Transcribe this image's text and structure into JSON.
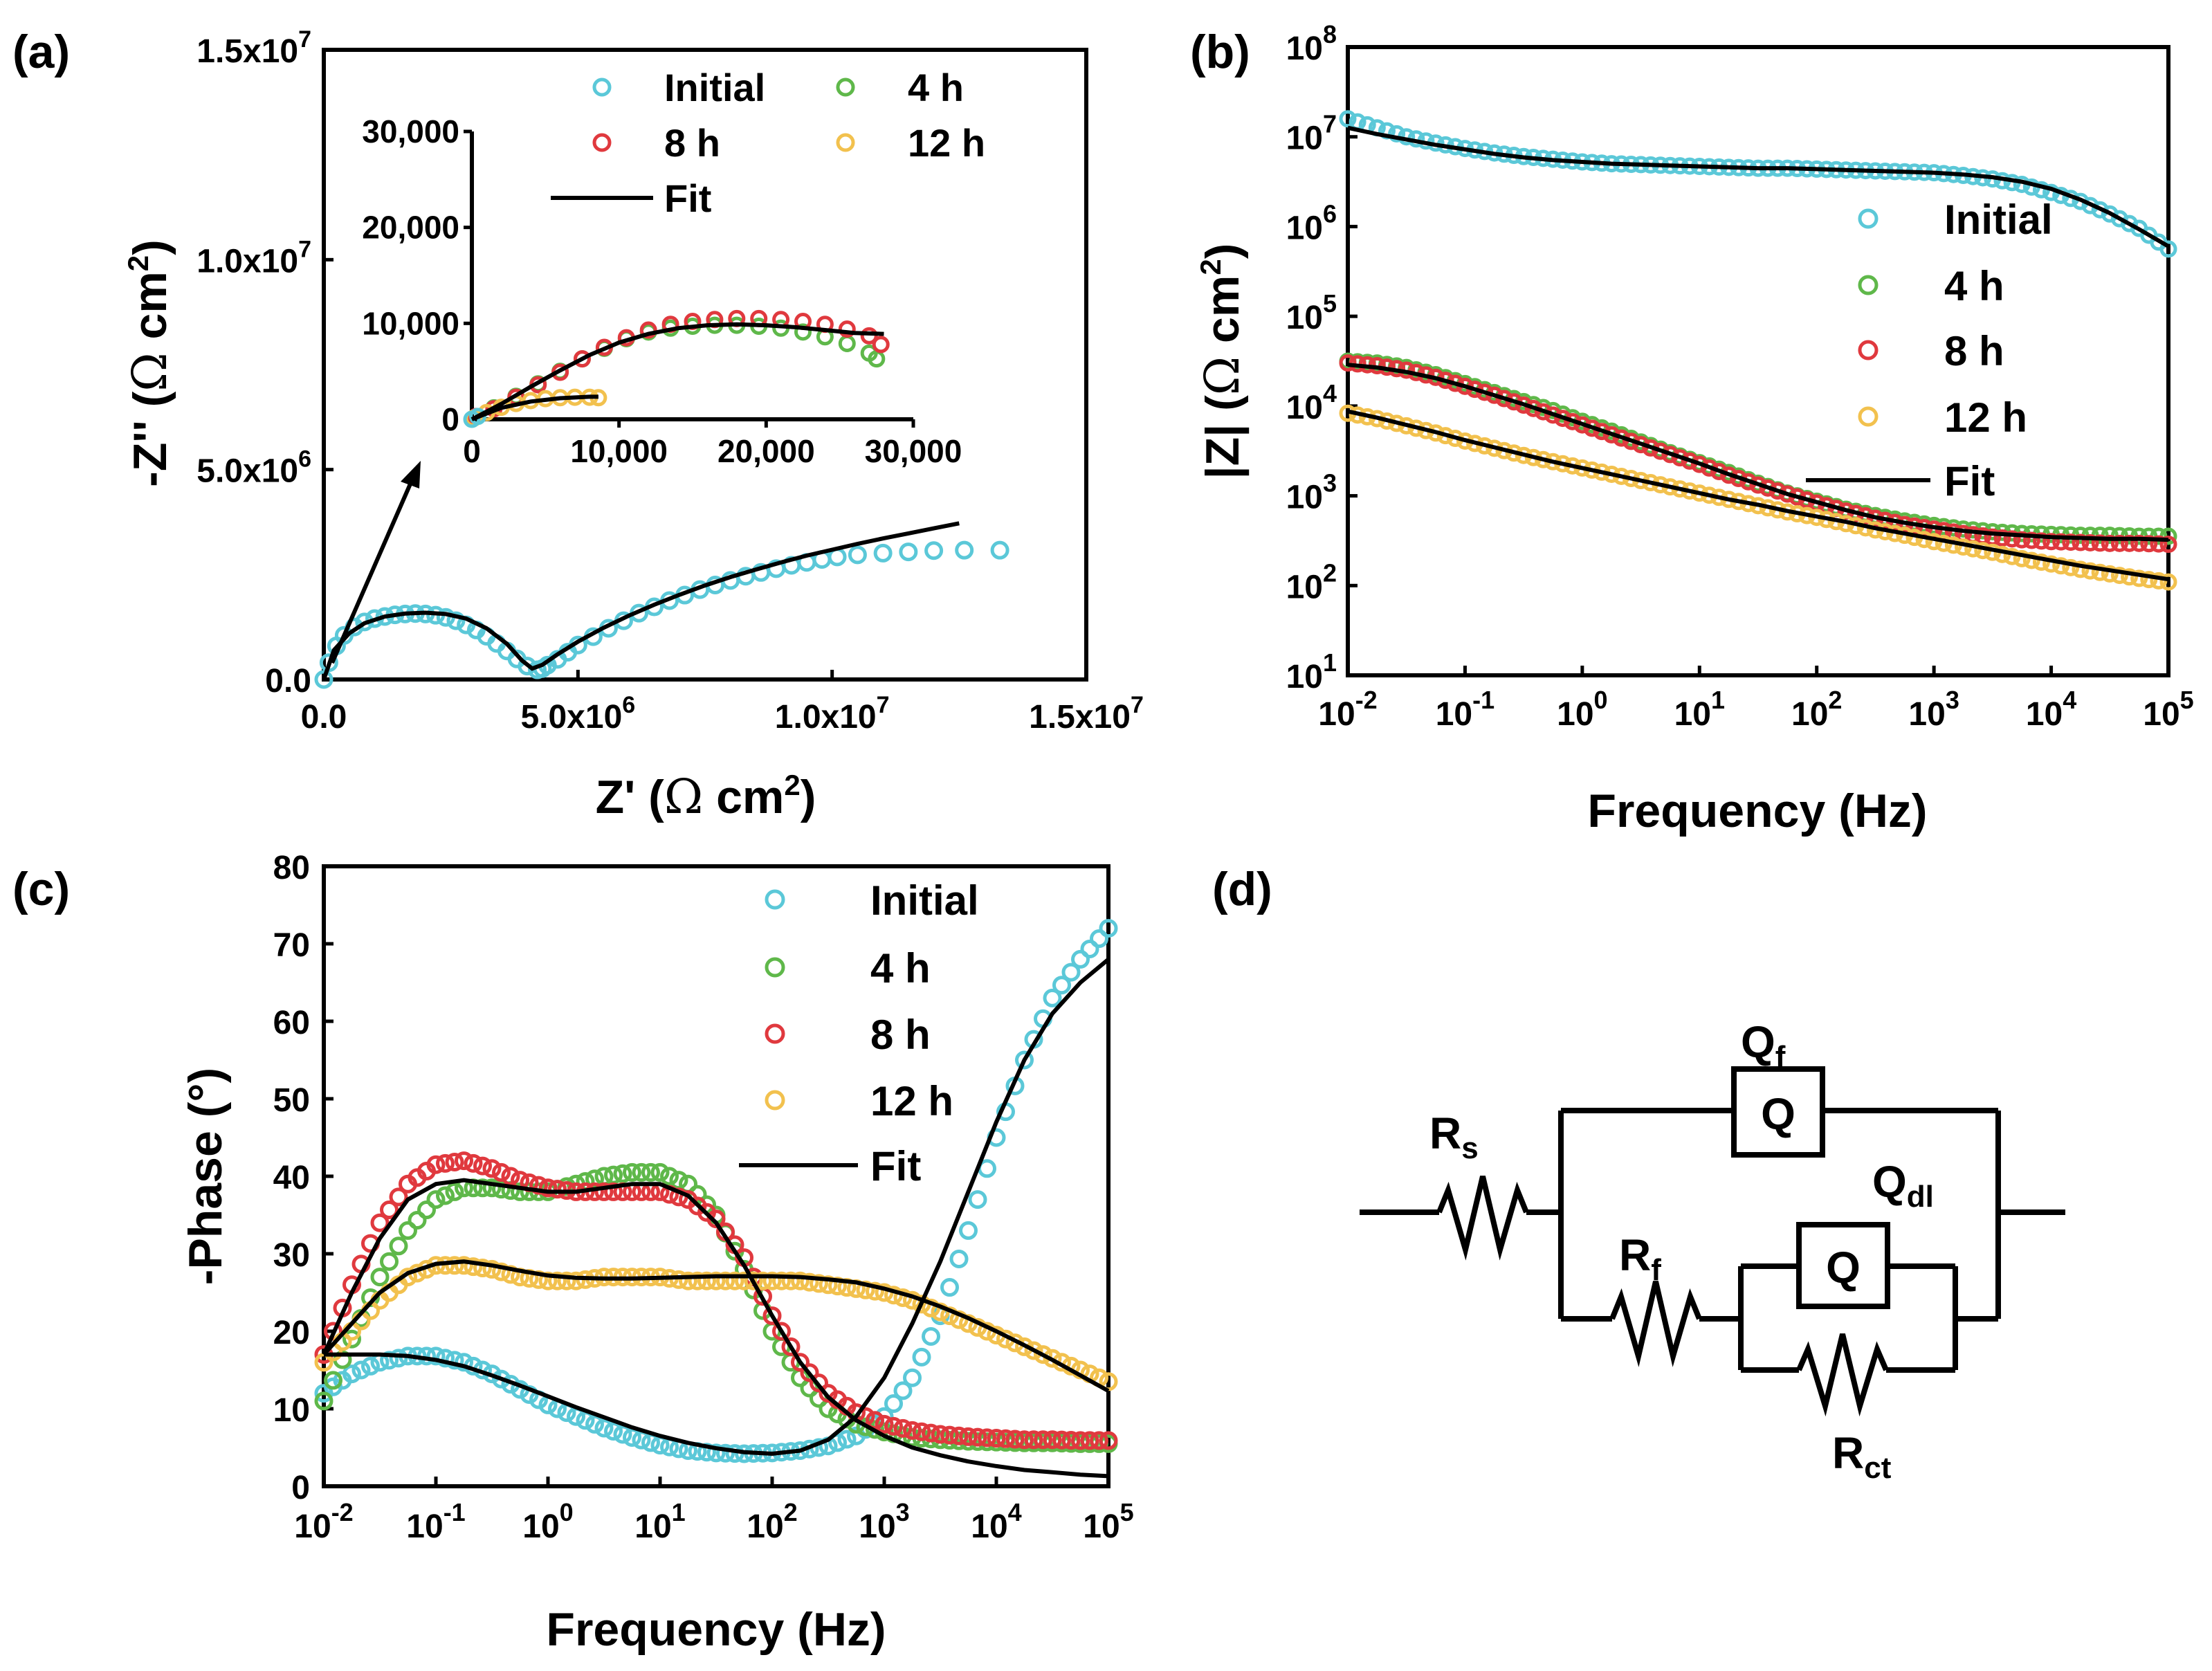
{
  "colors": {
    "initial": "#5bc8d8",
    "h4": "#5fb84a",
    "h8": "#e0393e",
    "h12": "#f2c14e",
    "fit": "#000000"
  },
  "panels": {
    "a": {
      "label": "(a)",
      "xlabel": "Z' (Ω cm²)",
      "ylabel": "-Z'' (Ω cm²)"
    },
    "b": {
      "label": "(b)",
      "xlabel": "Frequency (Hz)",
      "ylabel": "|Z| (Ω cm²)"
    },
    "c": {
      "label": "(c)",
      "xlabel": "Frequency (Hz)",
      "ylabel": "-Phase (°)"
    },
    "d": {
      "label": "(d)"
    }
  },
  "legend": {
    "initial": "Initial",
    "h4": "4 h",
    "h8": "8 h",
    "h12": "12 h",
    "fit": "Fit"
  },
  "circuit": {
    "labels": {
      "rs": "Rs",
      "rf": "Rf",
      "rct": "Rct",
      "qf": "Qf",
      "qdl": "Qdl",
      "q_symbol": "Q"
    },
    "elements": [
      {
        "name": "Rs",
        "type": "resistor",
        "connection": "series"
      },
      {
        "name": "Qf",
        "type": "CPE",
        "connection": "parallel with (Rf + (Qdl || Rct))"
      },
      {
        "name": "Rf",
        "type": "resistor",
        "connection": "series with (Qdl || Rct)"
      },
      {
        "name": "Qdl",
        "type": "CPE",
        "connection": "parallel with Rct"
      },
      {
        "name": "Rct",
        "type": "resistor",
        "connection": "parallel with Qdl"
      }
    ]
  },
  "chart_data": [
    {
      "id": "a",
      "type": "scatter",
      "title": "",
      "xlabel": "Z' (Ω cm²)",
      "ylabel": "-Z'' (Ω cm²)",
      "xlim": [
        0,
        15000000
      ],
      "ylim": [
        0,
        15000000
      ],
      "xticks": [
        0,
        5000000,
        10000000,
        15000000
      ],
      "xtick_labels": [
        "0.0",
        "5.0x10^6",
        "1.0x10^7",
        "1.5x10^7"
      ],
      "yticks": [
        0,
        5000000,
        10000000,
        15000000
      ],
      "ytick_labels": [
        "0.0",
        "5.0x10^6",
        "1.0x10^7",
        "1.5x10^7"
      ],
      "series": [
        {
          "name": "Initial",
          "marker": "open-circle",
          "x": [
            0,
            100000,
            250000,
            400000,
            600000,
            800000,
            1000000,
            1200000,
            1400000,
            1600000,
            1800000,
            2000000,
            2200000,
            2400000,
            2600000,
            2800000,
            3000000,
            3200000,
            3400000,
            3600000,
            3800000,
            4000000,
            4200000,
            4300000,
            4400000,
            4600000,
            4800000,
            5000000,
            5300000,
            5600000,
            5900000,
            6200000,
            6500000,
            6800000,
            7100000,
            7400000,
            7700000,
            8000000,
            8300000,
            8600000,
            8900000,
            9200000,
            9500000,
            9800000,
            10100000,
            10500000,
            11000000,
            11500000,
            12000000,
            12600000,
            13300000
          ],
          "y": [
            0,
            400000,
            800000,
            1050000,
            1250000,
            1370000,
            1450000,
            1500000,
            1540000,
            1560000,
            1570000,
            1560000,
            1530000,
            1480000,
            1400000,
            1300000,
            1180000,
            1030000,
            860000,
            680000,
            490000,
            320000,
            230000,
            260000,
            340000,
            480000,
            650000,
            820000,
            1020000,
            1220000,
            1400000,
            1580000,
            1730000,
            1880000,
            2010000,
            2140000,
            2250000,
            2360000,
            2460000,
            2550000,
            2640000,
            2720000,
            2790000,
            2860000,
            2920000,
            2970000,
            3010000,
            3040000,
            3070000,
            3080000,
            3080000
          ]
        }
      ],
      "fit": {
        "x": [
          0,
          200000,
          500000,
          800000,
          1200000,
          1600000,
          2000000,
          2400000,
          2800000,
          3200000,
          3600000,
          3900000,
          4100000,
          4300000,
          4600000,
          5000000,
          5500000,
          6000000,
          6500000,
          7000000,
          7500000,
          8000000,
          8500000,
          9000000,
          9500000,
          10000000,
          10500000,
          11000000,
          11500000,
          12000000,
          12500000
        ],
        "y": [
          0,
          700000,
          1100000,
          1340000,
          1500000,
          1570000,
          1590000,
          1560000,
          1450000,
          1220000,
          850000,
          450000,
          260000,
          350000,
          600000,
          900000,
          1230000,
          1520000,
          1780000,
          2020000,
          2240000,
          2440000,
          2620000,
          2790000,
          2950000,
          3090000,
          3230000,
          3360000,
          3480000,
          3600000,
          3720000
        ]
      },
      "annotation": {
        "type": "arrow",
        "from": [
          200000,
          500000
        ],
        "to": [
          1900000,
          4000000
        ]
      },
      "inset": {
        "xlim": [
          0,
          30000
        ],
        "ylim": [
          0,
          30000
        ],
        "xticks": [
          0,
          10000,
          20000,
          30000
        ],
        "xtick_labels": [
          "0",
          "10,000",
          "20,000",
          "30,000"
        ],
        "yticks": [
          0,
          10000,
          20000,
          30000
        ],
        "ytick_labels": [
          "0",
          "10,000",
          "20,000",
          "30,000"
        ],
        "series": [
          {
            "name": "4 h",
            "x": [
              200,
              1500,
              3000,
              4500,
              6000,
              7500,
              9000,
              10500,
              12000,
              13500,
              15000,
              16500,
              18000,
              19500,
              21000,
              22500,
              24000,
              25500,
              27000,
              27500
            ],
            "y": [
              200,
              1200,
              2400,
              3700,
              5000,
              6300,
              7400,
              8400,
              9100,
              9500,
              9700,
              9800,
              9800,
              9700,
              9500,
              9100,
              8600,
              7900,
              6900,
              6300
            ]
          },
          {
            "name": "8 h",
            "x": [
              300,
              1500,
              3000,
              4500,
              6000,
              7500,
              9000,
              10500,
              12000,
              13500,
              15000,
              16500,
              18000,
              19500,
              21000,
              22500,
              24000,
              25500,
              27000,
              27800
            ],
            "y": [
              300,
              1100,
              2300,
              3600,
              4900,
              6300,
              7500,
              8500,
              9300,
              9900,
              10200,
              10400,
              10500,
              10500,
              10400,
              10200,
              9900,
              9400,
              8700,
              7800
            ]
          },
          {
            "name": "12 h",
            "x": [
              100,
              1000,
              2000,
              3000,
              4000,
              5000,
              6000,
              7000,
              8000,
              8600
            ],
            "y": [
              100,
              700,
              1250,
              1650,
              1950,
              2150,
              2250,
              2300,
              2300,
              2250
            ]
          },
          {
            "name": "Initial",
            "x": [
              0,
              400
            ],
            "y": [
              0,
              300
            ]
          }
        ],
        "fits": [
          {
            "x": [
              0,
              2000,
              4000,
              6000,
              8000,
              10000,
              12000,
              14000,
              16000,
              18000,
              20000,
              22000,
              24000,
              26000,
              28000
            ],
            "y": [
              0,
              1600,
              3400,
              5100,
              6700,
              8000,
              8900,
              9500,
              9800,
              9900,
              9800,
              9600,
              9300,
              9000,
              8900
            ]
          },
          {
            "x": [
              0,
              2000,
              4000,
              6000,
              8000,
              8600
            ],
            "y": [
              0,
              1200,
              1850,
              2200,
              2350,
              2350
            ]
          }
        ]
      }
    },
    {
      "id": "b",
      "type": "scatter",
      "xscale": "log",
      "yscale": "log",
      "xlabel": "Frequency (Hz)",
      "ylabel": "|Z| (Ω cm²)",
      "xlim": [
        0.01,
        100000
      ],
      "ylim": [
        10,
        100000000
      ],
      "xtick_exponents": [
        -2,
        -1,
        0,
        1,
        2,
        3,
        4,
        5
      ],
      "ytick_exponents": [
        1,
        2,
        3,
        4,
        5,
        6,
        7,
        8
      ],
      "log_f": [
        -2,
        -1.75,
        -1.5,
        -1.25,
        -1,
        -0.75,
        -0.5,
        -0.25,
        0,
        0.25,
        0.5,
        0.75,
        1,
        1.25,
        1.5,
        1.75,
        2,
        2.25,
        2.5,
        2.75,
        3,
        3.25,
        3.5,
        3.75,
        4,
        4.25,
        4.5,
        4.75,
        5
      ],
      "series": [
        {
          "name": "Initial",
          "log_z": [
            7.2,
            7.1,
            7.0,
            6.93,
            6.87,
            6.82,
            6.78,
            6.75,
            6.72,
            6.7,
            6.69,
            6.68,
            6.67,
            6.66,
            6.65,
            6.65,
            6.64,
            6.63,
            6.62,
            6.61,
            6.6,
            6.57,
            6.53,
            6.47,
            6.38,
            6.28,
            6.14,
            5.98,
            5.75
          ]
        },
        {
          "name": "4 h",
          "log_z": [
            4.5,
            4.48,
            4.43,
            4.35,
            4.25,
            4.15,
            4.05,
            3.95,
            3.83,
            3.72,
            3.6,
            3.48,
            3.37,
            3.26,
            3.14,
            3.03,
            2.94,
            2.85,
            2.78,
            2.72,
            2.67,
            2.63,
            2.6,
            2.58,
            2.57,
            2.56,
            2.56,
            2.55,
            2.55
          ]
        },
        {
          "name": "8 h",
          "log_z": [
            4.48,
            4.45,
            4.4,
            4.32,
            4.22,
            4.12,
            4.01,
            3.9,
            3.79,
            3.68,
            3.57,
            3.46,
            3.35,
            3.23,
            3.12,
            3.02,
            2.92,
            2.83,
            2.75,
            2.68,
            2.63,
            2.58,
            2.54,
            2.51,
            2.49,
            2.48,
            2.47,
            2.47,
            2.46
          ]
        },
        {
          "name": "12 h",
          "log_z": [
            3.92,
            3.86,
            3.78,
            3.7,
            3.61,
            3.53,
            3.45,
            3.38,
            3.31,
            3.24,
            3.17,
            3.1,
            3.03,
            2.96,
            2.89,
            2.82,
            2.76,
            2.69,
            2.62,
            2.56,
            2.49,
            2.43,
            2.37,
            2.3,
            2.24,
            2.18,
            2.13,
            2.08,
            2.04
          ]
        }
      ],
      "fits": [
        {
          "log_z": [
            7.1,
            7.03,
            6.97,
            6.91,
            6.86,
            6.81,
            6.77,
            6.74,
            6.72,
            6.7,
            6.69,
            6.68,
            6.67,
            6.66,
            6.65,
            6.65,
            6.64,
            6.63,
            6.62,
            6.61,
            6.6,
            6.58,
            6.55,
            6.5,
            6.42,
            6.3,
            6.15,
            5.97,
            5.78
          ]
        },
        {
          "log_z": [
            4.46,
            4.43,
            4.38,
            4.31,
            4.22,
            4.12,
            4.02,
            3.91,
            3.8,
            3.69,
            3.58,
            3.47,
            3.36,
            3.24,
            3.13,
            3.02,
            2.93,
            2.84,
            2.76,
            2.7,
            2.65,
            2.61,
            2.58,
            2.56,
            2.54,
            2.53,
            2.52,
            2.52,
            2.51
          ]
        },
        {
          "log_z": [
            3.94,
            3.87,
            3.79,
            3.71,
            3.62,
            3.54,
            3.46,
            3.38,
            3.31,
            3.24,
            3.17,
            3.1,
            3.03,
            2.96,
            2.9,
            2.83,
            2.77,
            2.71,
            2.64,
            2.58,
            2.52,
            2.46,
            2.4,
            2.34,
            2.28,
            2.22,
            2.17,
            2.12,
            2.07
          ]
        }
      ]
    },
    {
      "id": "c",
      "type": "scatter",
      "xscale": "log",
      "xlabel": "Frequency (Hz)",
      "ylabel": "-Phase (°)",
      "xlim": [
        0.01,
        100000
      ],
      "ylim": [
        0,
        80
      ],
      "xtick_exponents": [
        -2,
        -1,
        0,
        1,
        2,
        3,
        4,
        5
      ],
      "yticks": [
        0,
        10,
        20,
        30,
        40,
        50,
        60,
        70,
        80
      ],
      "log_f": [
        -2,
        -1.75,
        -1.5,
        -1.25,
        -1,
        -0.75,
        -0.5,
        -0.25,
        0,
        0.25,
        0.5,
        0.75,
        1,
        1.25,
        1.5,
        1.75,
        2,
        2.25,
        2.5,
        2.75,
        3,
        3.25,
        3.5,
        3.75,
        4,
        4.25,
        4.5,
        4.75,
        5
      ],
      "series": [
        {
          "name": "Initial",
          "phase": [
            12,
            14.5,
            16,
            16.8,
            16.8,
            16,
            14.5,
            12.5,
            10.5,
            9,
            7.5,
            6.3,
            5.3,
            4.6,
            4.3,
            4.2,
            4.3,
            4.6,
            5.2,
            6.5,
            9,
            14,
            22,
            33,
            45,
            55,
            63,
            68,
            72
          ]
        },
        {
          "name": "4 h",
          "phase": [
            11,
            19,
            27,
            33,
            37,
            38.5,
            38.5,
            38,
            38,
            39,
            40,
            40.5,
            40.5,
            39,
            35,
            28,
            20,
            14,
            10,
            8,
            7,
            6.3,
            6,
            5.8,
            5.7,
            5.6,
            5.6,
            5.5,
            5.5
          ]
        },
        {
          "name": "8 h",
          "phase": [
            17,
            26,
            34,
            39,
            41.5,
            42,
            41,
            39.5,
            38.5,
            38,
            38,
            38,
            38,
            37,
            34.5,
            29.5,
            22,
            16,
            12,
            9.5,
            8,
            7.2,
            6.7,
            6.4,
            6.2,
            6,
            6,
            5.9,
            5.9
          ]
        },
        {
          "name": "12 h",
          "phase": [
            16,
            20,
            24,
            27,
            28.5,
            28.5,
            28,
            27,
            26.5,
            26.5,
            27,
            27,
            27,
            26.5,
            26.5,
            26.5,
            26.5,
            26.5,
            26,
            25.5,
            25,
            24,
            22.5,
            21,
            19.5,
            18,
            16.5,
            15,
            13.5
          ]
        }
      ],
      "fits": [
        {
          "phase": [
            17,
            17,
            17,
            16.8,
            16.3,
            15.5,
            14.3,
            13,
            11.6,
            10.2,
            8.9,
            7.6,
            6.5,
            5.6,
            4.9,
            4.4,
            4.2,
            4.6,
            6,
            9,
            14,
            21,
            29,
            38,
            47,
            55,
            61,
            65,
            68
          ]
        },
        {
          "phase": [
            17,
            25,
            32,
            37,
            39,
            39.5,
            39,
            38.5,
            38,
            38,
            38.5,
            39,
            39,
            37.5,
            34,
            28.5,
            22,
            16,
            11.5,
            8.5,
            6.5,
            5,
            4,
            3.2,
            2.6,
            2.1,
            1.8,
            1.5,
            1.3
          ]
        },
        {
          "phase": [
            17,
            21,
            25,
            27.5,
            28.7,
            29,
            28.5,
            27.8,
            27.2,
            26.9,
            26.8,
            26.8,
            26.9,
            27,
            27.1,
            27.1,
            27.1,
            27,
            26.7,
            26.3,
            25.5,
            24.5,
            23.2,
            21.7,
            20,
            18.2,
            16.3,
            14.3,
            12.3
          ]
        }
      ]
    }
  ]
}
